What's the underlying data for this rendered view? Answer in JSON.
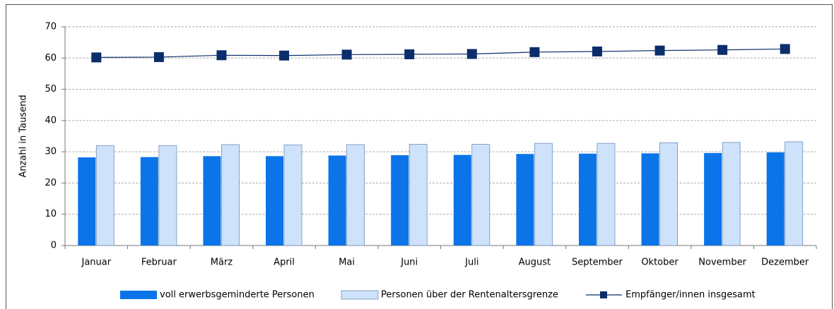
{
  "chart_data": {
    "type": "bar-line",
    "y_label": "Anzahl in Tausend",
    "categories": [
      "Januar",
      "Februar",
      "März",
      "April",
      "Mai",
      "Juni",
      "Juli",
      "August",
      "September",
      "Oktober",
      "November",
      "Dezember"
    ],
    "series": [
      {
        "name": "voll erwerbsgeminderte Personen",
        "type": "bar",
        "color": "#0a74e8",
        "values": [
          28.2,
          28.3,
          28.6,
          28.6,
          28.8,
          28.9,
          29.0,
          29.3,
          29.4,
          29.5,
          29.6,
          29.8
        ]
      },
      {
        "name": "Personen über der Rentenaltersgrenze",
        "type": "bar",
        "color": "#cfe2fb",
        "values": [
          32.0,
          32.0,
          32.3,
          32.2,
          32.3,
          32.4,
          32.4,
          32.7,
          32.7,
          32.9,
          33.0,
          33.2
        ]
      },
      {
        "name": "Empfänger/innen insgesamt",
        "type": "line",
        "color": "#0b2d6b",
        "values": [
          60.2,
          60.3,
          60.9,
          60.8,
          61.1,
          61.2,
          61.3,
          61.9,
          62.1,
          62.4,
          62.6,
          62.9
        ]
      }
    ],
    "ylim": [
      0,
      70
    ],
    "yticks": [
      0,
      10,
      20,
      30,
      40,
      50,
      60,
      70
    ],
    "grid": true,
    "legend": "bottom"
  }
}
